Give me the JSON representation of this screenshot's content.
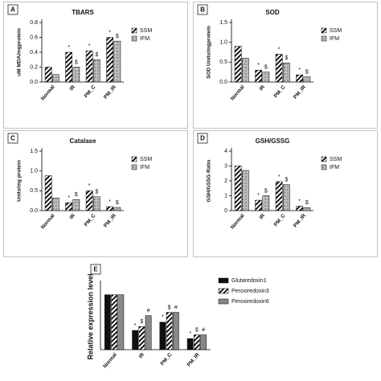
{
  "chart_data": [
    {
      "type": "bar",
      "label": "A",
      "title": "TBARS",
      "y_label": "uM MDA/mgprotein",
      "categories": [
        "Normal",
        "IR",
        "PM_C",
        "PM_IR"
      ],
      "ylim": [
        0,
        0.8
      ],
      "yticks": [
        {
          "value": 0,
          "label": "0.0"
        },
        {
          "value": 0.2,
          "label": "0.2"
        },
        {
          "value": 0.4,
          "label": "0.4"
        },
        {
          "value": 0.6,
          "label": "0.6"
        },
        {
          "value": 0.8,
          "label": "0.8"
        }
      ],
      "series": [
        {
          "name": "SSM",
          "color": "#000000",
          "pattern": "hatch",
          "values": [
            0.2,
            0.4,
            0.42,
            0.6
          ],
          "markers": [
            null,
            "*",
            "*",
            "*"
          ]
        },
        {
          "name": "IFM",
          "color": "#777777",
          "pattern": "dots",
          "values": [
            0.1,
            0.2,
            0.3,
            0.55
          ],
          "markers": [
            null,
            "$",
            "$",
            "$"
          ]
        }
      ]
    },
    {
      "type": "bar",
      "label": "B",
      "title": "SOD",
      "y_label": "SOD Units/mgprotein",
      "categories": [
        "Normal",
        "IR",
        "PM_C",
        "PM_IR"
      ],
      "ylim": [
        0,
        1.5
      ],
      "yticks": [
        {
          "value": 0,
          "label": "0.0"
        },
        {
          "value": 0.5,
          "label": "0.5"
        },
        {
          "value": 1,
          "label": "1.0"
        },
        {
          "value": 1.5,
          "label": "1.5"
        }
      ],
      "series": [
        {
          "name": "SSM",
          "color": "#000000",
          "pattern": "hatch",
          "values": [
            0.9,
            0.3,
            0.7,
            0.18
          ],
          "markers": [
            null,
            "*",
            "*",
            "*"
          ]
        },
        {
          "name": "IFM",
          "color": "#777777",
          "pattern": "dots",
          "values": [
            0.6,
            0.25,
            0.48,
            0.13
          ],
          "markers": [
            null,
            "$",
            "$",
            "$"
          ]
        }
      ]
    },
    {
      "type": "bar",
      "label": "C",
      "title": "Catalase",
      "y_label": "Units/mg protein",
      "categories": [
        "Normal",
        "IR",
        "PM_C",
        "PM_IR"
      ],
      "ylim": [
        0,
        1.5
      ],
      "yticks": [
        {
          "value": 0,
          "label": "0.0"
        },
        {
          "value": 0.5,
          "label": "0.5"
        },
        {
          "value": 1,
          "label": "1.0"
        },
        {
          "value": 1.5,
          "label": "1.5"
        }
      ],
      "series": [
        {
          "name": "SSM",
          "color": "#000000",
          "pattern": "hatch",
          "values": [
            0.88,
            0.2,
            0.5,
            0.1
          ],
          "markers": [
            null,
            "*",
            "*",
            "*"
          ]
        },
        {
          "name": "IFM",
          "color": "#777777",
          "pattern": "dots",
          "values": [
            0.32,
            0.28,
            0.35,
            0.08
          ],
          "markers": [
            null,
            "$",
            "$",
            "$"
          ]
        }
      ]
    },
    {
      "type": "bar",
      "label": "D",
      "title": "GSH/GSSG",
      "y_label": "GSH/GSSG Ratio",
      "categories": [
        "Normal",
        "IR",
        "PM_C",
        "PM_IR"
      ],
      "ylim": [
        0,
        4
      ],
      "yticks": [
        0,
        1,
        2,
        3,
        4
      ],
      "series": [
        {
          "name": "SSM",
          "color": "#000000",
          "pattern": "hatch",
          "values": [
            3.0,
            0.7,
            1.95,
            0.3
          ],
          "markers": [
            null,
            "*",
            "*",
            "*"
          ]
        },
        {
          "name": "IFM",
          "color": "#777777",
          "pattern": "dots",
          "values": [
            2.7,
            1.0,
            1.75,
            0.2
          ],
          "markers": [
            null,
            "$",
            "$",
            "$"
          ]
        }
      ]
    },
    {
      "type": "bar",
      "label": "E",
      "y_label": "Relative expression level",
      "categories": [
        "Normal",
        "IR",
        "PM_C",
        "PM_IR"
      ],
      "ylim": [
        0,
        1.2
      ],
      "series": [
        {
          "name": "Glutaredoxin1",
          "color": "#111111",
          "pattern": "solid",
          "values": [
            1.0,
            0.35,
            0.5,
            0.2
          ],
          "markers": [
            null,
            "*",
            "*",
            "*"
          ]
        },
        {
          "name": "Peroxiredoxin3",
          "color": "#000000",
          "pattern": "hatch",
          "values": [
            1.0,
            0.42,
            0.68,
            0.27
          ],
          "markers": [
            null,
            "$",
            "$",
            "$"
          ]
        },
        {
          "name": "Peroxiredoxin6",
          "color": "#888888",
          "pattern": "solid",
          "values": [
            1.0,
            0.62,
            0.68,
            0.27
          ],
          "markers": [
            null,
            "#",
            "#",
            "#"
          ]
        }
      ]
    }
  ]
}
